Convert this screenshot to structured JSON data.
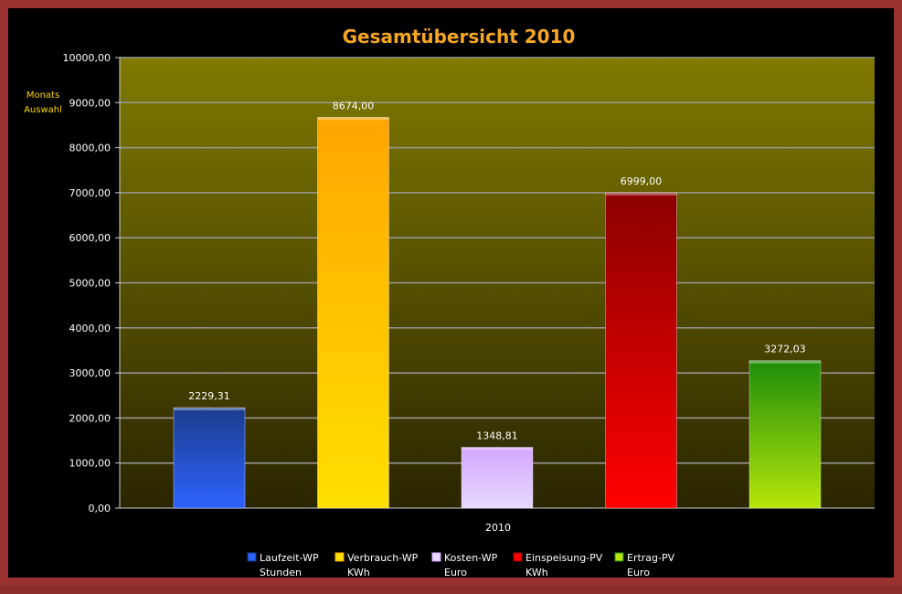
{
  "chart_data": {
    "type": "bar",
    "title": "Gesamtübersicht 2010",
    "side_label": [
      "Monats",
      "Auswahl"
    ],
    "categories": [
      "2010"
    ],
    "ylim": [
      0,
      10000
    ],
    "yticks": [
      "0,00",
      "1000,00",
      "2000,00",
      "3000,00",
      "4000,00",
      "5000,00",
      "6000,00",
      "7000,00",
      "8000,00",
      "9000,00",
      "10000,00"
    ],
    "grid": true,
    "legend_position": "bottom",
    "series": [
      {
        "name": "Laufzeit-WP",
        "unit": "Stunden",
        "values": [
          2229.31
        ],
        "label": "2229,31",
        "color": "#2e62ff",
        "color_top": "#1a3c8c"
      },
      {
        "name": "Verbrauch-WP",
        "unit": "KWh",
        "values": [
          8674.0
        ],
        "label": "8674,00",
        "color": "#ffe000",
        "color_top": "#ffa500"
      },
      {
        "name": "Kosten-WP",
        "unit": "Euro",
        "values": [
          1348.81
        ],
        "label": "1348,81",
        "color": "#e6d8ff",
        "color_top": "#d3a6ff"
      },
      {
        "name": "Einspeisung-PV",
        "unit": "KWh",
        "values": [
          6999.0
        ],
        "label": "6999,00",
        "color": "#ff0000",
        "color_top": "#8b0000"
      },
      {
        "name": "Ertrag-PV",
        "unit": "Euro",
        "values": [
          3272.03
        ],
        "label": "3272,03",
        "color": "#b6e60a",
        "color_top": "#1e8c0a"
      }
    ],
    "plot_colors": {
      "top": "#807a00",
      "bottom": "#2a2500",
      "grid": "#9a9a9a",
      "title": "#f5a623"
    }
  }
}
